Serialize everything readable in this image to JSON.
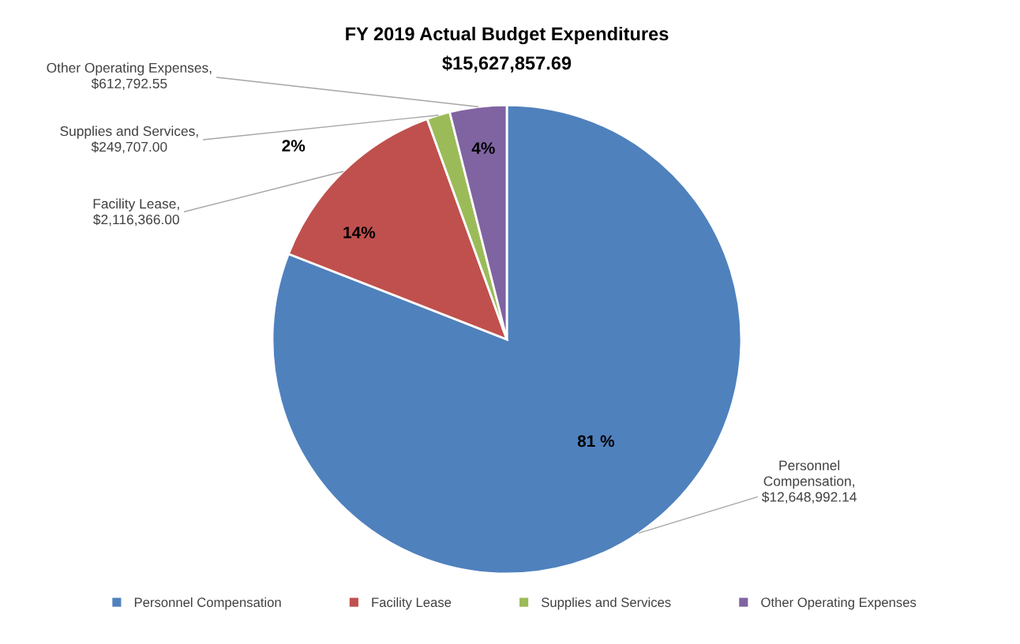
{
  "chart_data": {
    "type": "pie",
    "title": "FY 2019 Actual Budget Expenditures",
    "subtitle": "$15,627,857.69",
    "categories": [
      "Personnel Compensation",
      "Facility Lease",
      "Supplies and Services",
      "Other Operating Expenses"
    ],
    "values": [
      12648992.14,
      2116366.0,
      249707.0,
      612792.55
    ],
    "colors": [
      "#4f81bd",
      "#c0504d",
      "#9bbb59",
      "#8064a2"
    ],
    "value_labels": [
      "Personnel Compensation, $12,648,992.14",
      "Facility Lease, $2,116,366.00",
      "Supplies and Services, $249,707.00",
      "Other Operating Expenses, $612,792.55"
    ],
    "annotations": [
      "81 %",
      "14%",
      "2%",
      "4%"
    ],
    "legend": "bottom"
  }
}
